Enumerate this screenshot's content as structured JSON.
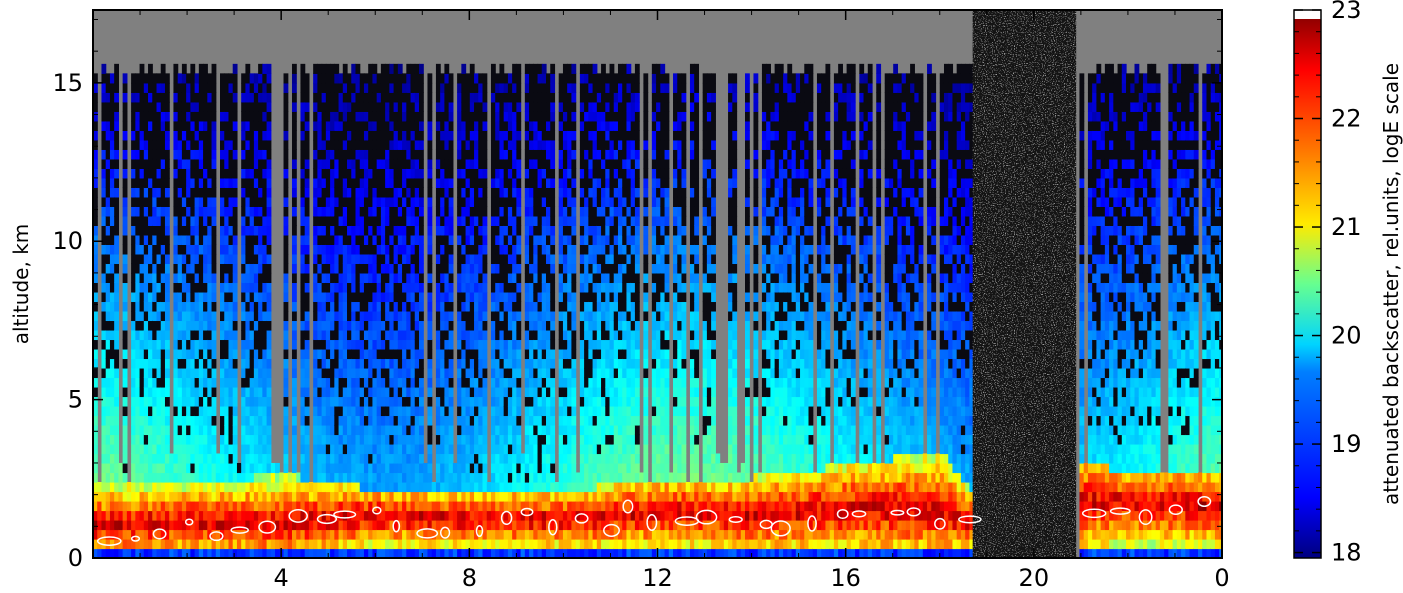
{
  "chart_data": {
    "type": "heatmap",
    "title": "",
    "xlabel": "",
    "ylabel": "altitude, km",
    "xlim": [
      0,
      24
    ],
    "ylim": [
      0,
      17.3
    ],
    "x_ticks": [
      4,
      8,
      12,
      16,
      20,
      0
    ],
    "y_ticks": [
      0,
      5,
      10,
      15
    ],
    "colorbar": {
      "label": "attenuated backscatter, rel.units, logE scale",
      "range": [
        17.95,
        23
      ],
      "ticks": [
        18,
        19,
        20,
        21,
        22,
        23
      ],
      "colormap": "jet"
    },
    "missing_color": "#808080",
    "signal_ceiling_km": 15.4,
    "aerosol_layer": {
      "x": [
        0,
        2,
        4,
        6,
        8,
        10,
        12,
        14,
        16,
        18,
        18.6,
        21.1,
        22,
        24
      ],
      "top_km": [
        2.3,
        2.2,
        2.5,
        2.0,
        1.9,
        2.0,
        2.3,
        2.4,
        2.8,
        3.2,
        2.0,
        3.0,
        2.4,
        2.7
      ],
      "peak_km": [
        0.9,
        1.0,
        1.0,
        1.2,
        1.1,
        1.1,
        1.3,
        1.2,
        1.4,
        1.4,
        1.0,
        1.6,
        1.6,
        1.5
      ]
    },
    "noise_only_interval": [
      18.7,
      20.9
    ]
  },
  "colors": {
    "background": "#808080",
    "noise_ground": "#141414"
  }
}
